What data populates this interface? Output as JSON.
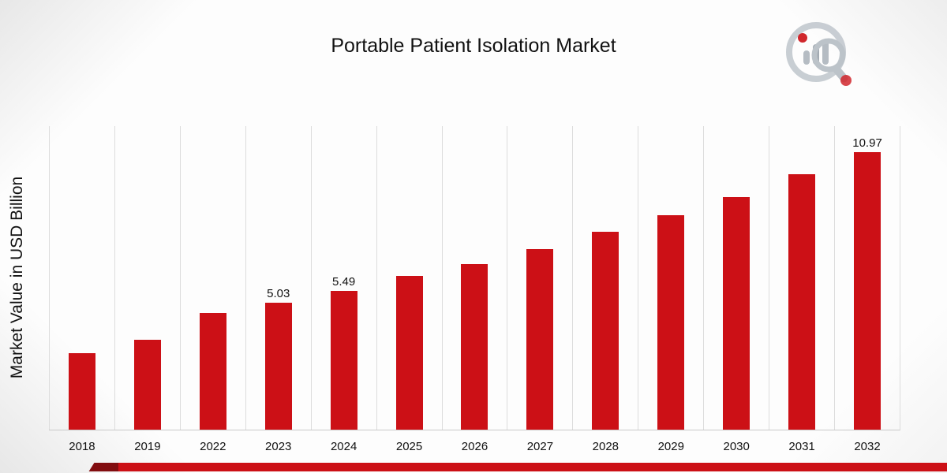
{
  "title": "Portable Patient Isolation Market",
  "y_axis_label": "Market Value in USD Billion",
  "logo_name": "market-research-future-logo",
  "accent_color": "#cc1016",
  "chart_data": {
    "type": "bar",
    "title": "Portable Patient Isolation Market",
    "xlabel": "",
    "ylabel": "Market Value in USD Billion",
    "ylim": [
      0,
      12
    ],
    "grid": "vertical",
    "legend": "none",
    "bar_color": "#cc1016",
    "categories": [
      "2018",
      "2019",
      "2022",
      "2023",
      "2024",
      "2025",
      "2026",
      "2027",
      "2028",
      "2029",
      "2030",
      "2031",
      "2032"
    ],
    "values": [
      3.02,
      3.55,
      4.62,
      5.03,
      5.49,
      6.07,
      6.54,
      7.14,
      7.83,
      8.49,
      9.21,
      10.09,
      10.97
    ],
    "data_labels": [
      "",
      "",
      "",
      "5.03",
      "5.49",
      "",
      "",
      "",
      "",
      "",
      "",
      "",
      "10.97"
    ]
  }
}
